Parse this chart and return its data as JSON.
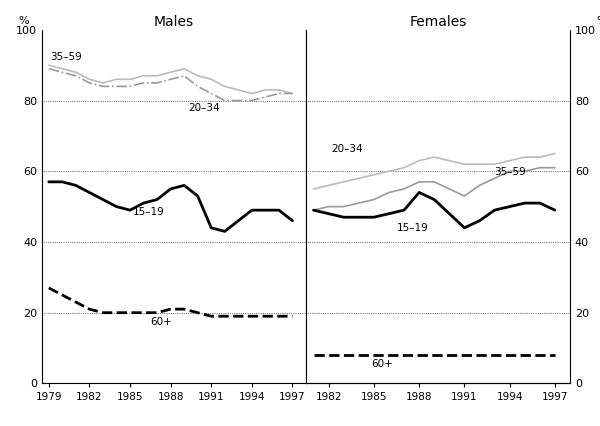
{
  "title_left": "Males",
  "title_right": "Females",
  "ylim": [
    0,
    100
  ],
  "yticks": [
    0,
    20,
    40,
    60,
    80,
    100
  ],
  "ytick_labels": [
    "0",
    "20",
    "40",
    "60",
    "80",
    "100"
  ],
  "hline_vals": [
    20,
    40,
    60,
    80
  ],
  "male_years": [
    1979,
    1980,
    1981,
    1982,
    1983,
    1984,
    1985,
    1986,
    1987,
    1988,
    1989,
    1990,
    1991,
    1992,
    1993,
    1994,
    1995,
    1996,
    1997
  ],
  "female_years": [
    1981,
    1982,
    1983,
    1984,
    1985,
    1986,
    1987,
    1988,
    1989,
    1990,
    1991,
    1992,
    1993,
    1994,
    1995,
    1996,
    1997
  ],
  "male_35_59": [
    90,
    89,
    88,
    86,
    85,
    86,
    86,
    87,
    87,
    88,
    89,
    87,
    86,
    84,
    83,
    82,
    83,
    83,
    82
  ],
  "male_20_34": [
    89,
    88,
    87,
    85,
    84,
    84,
    84,
    85,
    85,
    86,
    87,
    84,
    82,
    80,
    80,
    80,
    81,
    82,
    82
  ],
  "male_15_19": [
    57,
    57,
    56,
    54,
    52,
    50,
    49,
    51,
    52,
    55,
    56,
    53,
    44,
    43,
    46,
    49,
    49,
    49,
    46
  ],
  "male_60plus": [
    27,
    25,
    23,
    21,
    20,
    20,
    20,
    20,
    20,
    21,
    21,
    20,
    19,
    19,
    19,
    19,
    19,
    19,
    19
  ],
  "female_20_34": [
    55,
    56,
    57,
    58,
    59,
    60,
    61,
    63,
    64,
    63,
    62,
    62,
    62,
    63,
    64,
    64,
    65
  ],
  "female_35_59": [
    49,
    50,
    50,
    51,
    52,
    54,
    55,
    57,
    57,
    55,
    53,
    56,
    58,
    60,
    60,
    61,
    61
  ],
  "female_15_19": [
    49,
    48,
    47,
    47,
    47,
    48,
    49,
    54,
    52,
    48,
    44,
    46,
    49,
    50,
    51,
    51,
    49
  ],
  "female_60plus": [
    8,
    8,
    8,
    8,
    8,
    8,
    8,
    8,
    8,
    8,
    8,
    8,
    8,
    8,
    8,
    8,
    8
  ],
  "color_gray_light": "#bbbbbb",
  "color_gray_mid": "#999999",
  "color_black": "#000000",
  "lw_thick": 2.0,
  "lw_thin": 1.2,
  "background": "#ffffff",
  "male_xlim": [
    1978.5,
    1998.0
  ],
  "female_xlim": [
    1980.5,
    1998.0
  ],
  "male_xticks": [
    1979,
    1982,
    1985,
    1988,
    1991,
    1994,
    1997
  ],
  "female_xticks": [
    1982,
    1985,
    1988,
    1991,
    1994,
    1997
  ],
  "male_xtick_labels": [
    "1979",
    "1982",
    "1985",
    "1988",
    "1991",
    "1994",
    "1997"
  ],
  "female_xtick_labels": [
    "1982",
    "1985",
    "1988",
    "1991",
    "1994",
    "1997"
  ]
}
